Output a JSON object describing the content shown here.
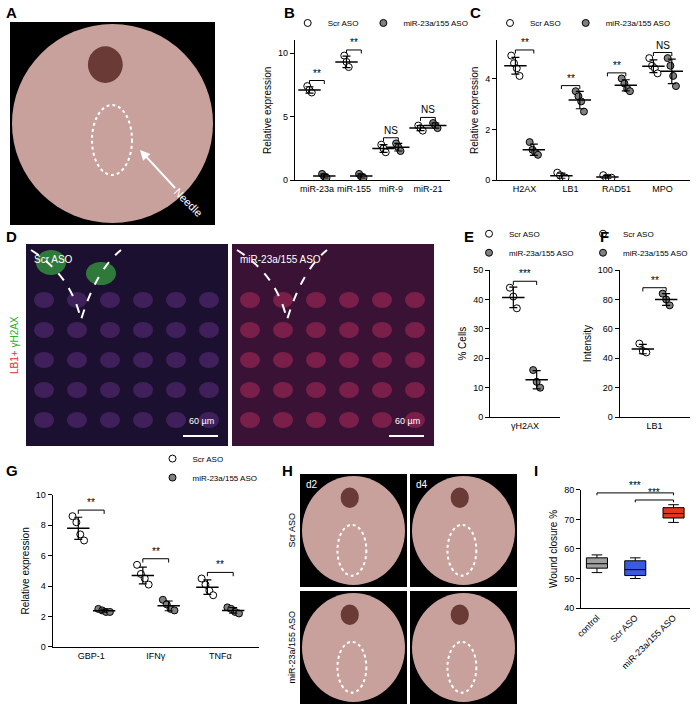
{
  "images": {
    "A": {
      "label": "A",
      "arrow_label": "Needle"
    },
    "D": {
      "label": "D",
      "columns": [
        "Scr ASO",
        "miR-23a/155 ASO"
      ],
      "stain": [
        "LB1+",
        "γH2AX"
      ],
      "scale_bar": "60 µm"
    },
    "H": {
      "label": "H",
      "columns": [
        "d2",
        "d4"
      ],
      "rows": [
        "Scr ASO",
        "miR-23a/155 ASO"
      ]
    }
  },
  "chart_data": [
    {
      "panel": "B",
      "type": "dot",
      "ylabel": "Relative expression",
      "categories": [
        "miR-23a",
        "miR-155",
        "miR-9",
        "miR-21"
      ],
      "ylim": [
        0,
        11
      ],
      "yticks": [
        0,
        5,
        10
      ],
      "legend": "top",
      "series": [
        {
          "name": "Scr ASO",
          "color": "#ffffff",
          "points": [
            [
              7.4,
              7.1,
              6.9
            ],
            [
              9.8,
              9.3,
              8.9
            ],
            [
              2.8,
              2.5,
              2.2
            ],
            [
              4.3,
              4.1,
              3.9
            ]
          ],
          "mean": [
            7.1,
            9.3,
            2.5,
            4.1
          ],
          "sd": [
            0.25,
            0.45,
            0.3,
            0.2
          ]
        },
        {
          "name": "miR-23a/155 ASO",
          "color": "#808080",
          "points": [
            [
              0.5,
              0.3,
              0.2
            ],
            [
              0.5,
              0.3,
              0.2
            ],
            [
              2.9,
              2.6,
              2.3
            ],
            [
              4.5,
              4.3,
              4.1
            ]
          ],
          "mean": [
            0.33,
            0.33,
            2.6,
            4.3
          ],
          "sd": [
            0.15,
            0.15,
            0.3,
            0.2
          ]
        }
      ],
      "annotations": [
        "**",
        "**",
        "NS",
        "NS"
      ]
    },
    {
      "panel": "C",
      "type": "dot",
      "ylabel": "Relative expression",
      "categories": [
        "H2AX",
        "LB1",
        "RAD51",
        "MPO"
      ],
      "ylim": [
        0,
        5.5
      ],
      "yticks": [
        0,
        2,
        4
      ],
      "legend": "top",
      "series": [
        {
          "name": "Scr ASO",
          "color": "#ffffff",
          "points": [
            [
              4.9,
              4.6,
              4.4,
              4.1
            ],
            [
              0.3,
              0.2,
              0.1,
              0.1
            ],
            [
              0.2,
              0.1,
              0.1,
              0.1
            ],
            [
              4.8,
              4.5,
              4.4,
              4.2
            ]
          ],
          "mean": [
            4.5,
            0.18,
            0.13,
            4.48
          ],
          "sd": [
            0.33,
            0.1,
            0.05,
            0.25
          ]
        },
        {
          "name": "miR-23a/155 ASO",
          "color": "#808080",
          "points": [
            [
              1.5,
              1.2,
              1.1,
              1.0
            ],
            [
              3.5,
              3.3,
              3.1,
              2.7
            ],
            [
              4.0,
              3.8,
              3.6,
              3.5
            ],
            [
              4.8,
              4.5,
              4.1,
              3.7
            ]
          ],
          "mean": [
            1.2,
            3.15,
            3.73,
            4.28
          ],
          "sd": [
            0.22,
            0.34,
            0.22,
            0.48
          ]
        }
      ],
      "annotations": [
        "**",
        "**",
        "**",
        "NS"
      ]
    },
    {
      "panel": "E",
      "type": "dot",
      "ylabel": "% Cells",
      "categories": [
        "γH2AX"
      ],
      "ylim": [
        0,
        50
      ],
      "yticks": [
        0,
        10,
        20,
        30,
        40,
        50
      ],
      "legend": "top left",
      "series": [
        {
          "name": "Scr ASO",
          "color": "#ffffff",
          "points": [
            [
              44,
              41,
              37
            ]
          ],
          "mean": [
            40.7
          ],
          "sd": [
            3.5
          ]
        },
        {
          "name": "miR-23a/155 ASO",
          "color": "#808080",
          "points": [
            [
              16,
              12,
              10
            ]
          ],
          "mean": [
            12.7
          ],
          "sd": [
            3.1
          ]
        }
      ],
      "annotations": [
        "***"
      ]
    },
    {
      "panel": "F",
      "type": "dot",
      "ylabel": "Intensity",
      "categories": [
        "LB1"
      ],
      "ylim": [
        0,
        100
      ],
      "yticks": [
        0,
        20,
        40,
        60,
        80,
        100
      ],
      "legend": "top right",
      "series": [
        {
          "name": "Scr ASO",
          "color": "#ffffff",
          "points": [
            [
              50,
              45,
              44
            ]
          ],
          "mean": [
            46.3
          ],
          "sd": [
            3.2
          ]
        },
        {
          "name": "miR-23a/155 ASO",
          "color": "#808080",
          "points": [
            [
              84,
              80,
              76
            ]
          ],
          "mean": [
            80
          ],
          "sd": [
            4
          ]
        }
      ],
      "annotations": [
        "**"
      ]
    },
    {
      "panel": "G",
      "type": "dot",
      "ylabel": "Relative expression",
      "categories": [
        "GBP-1",
        "IFNγ",
        "TNFα"
      ],
      "ylim": [
        0,
        10
      ],
      "yticks": [
        0,
        2,
        4,
        6,
        8,
        10
      ],
      "legend": "top right",
      "series": [
        {
          "name": "Scr ASO",
          "color": "#ffffff",
          "points": [
            [
              8.6,
              8.2,
              7.4,
              7.0
            ],
            [
              5.4,
              4.8,
              4.5,
              4.1
            ],
            [
              4.5,
              4.1,
              3.7,
              3.4
            ]
          ],
          "mean": [
            7.8,
            4.7,
            3.93
          ],
          "sd": [
            0.73,
            0.55,
            0.48
          ]
        },
        {
          "name": "miR-23a/155 ASO",
          "color": "#808080",
          "points": [
            [
              2.5,
              2.4,
              2.3,
              2.3
            ],
            [
              3.1,
              2.8,
              2.5,
              2.4
            ],
            [
              2.6,
              2.5,
              2.3,
              2.2
            ]
          ],
          "mean": [
            2.38,
            2.7,
            2.4
          ],
          "sd": [
            0.1,
            0.32,
            0.18
          ]
        }
      ],
      "annotations": [
        "**",
        "**",
        "**"
      ]
    },
    {
      "panel": "I",
      "type": "box",
      "ylabel": "Wound closure %",
      "categories": [
        "control",
        "Scr ASO",
        "miR-23a/155 ASO"
      ],
      "colors": [
        "#a0a0a0",
        "#3a5be0",
        "#e2361f"
      ],
      "min": [
        52,
        50,
        69
      ],
      "q1": [
        53.5,
        51,
        70.5
      ],
      "median": [
        55,
        53,
        72
      ],
      "q3": [
        57,
        56,
        74
      ],
      "max": [
        58,
        57,
        75
      ],
      "ylim": [
        40,
        80
      ],
      "yticks": [
        40,
        50,
        60,
        70,
        80
      ],
      "comparisons": [
        {
          "from": "control",
          "to": "miR-23a/155 ASO",
          "text": "***"
        },
        {
          "from": "Scr ASO",
          "to": "miR-23a/155 ASO",
          "text": "***"
        }
      ]
    }
  ]
}
